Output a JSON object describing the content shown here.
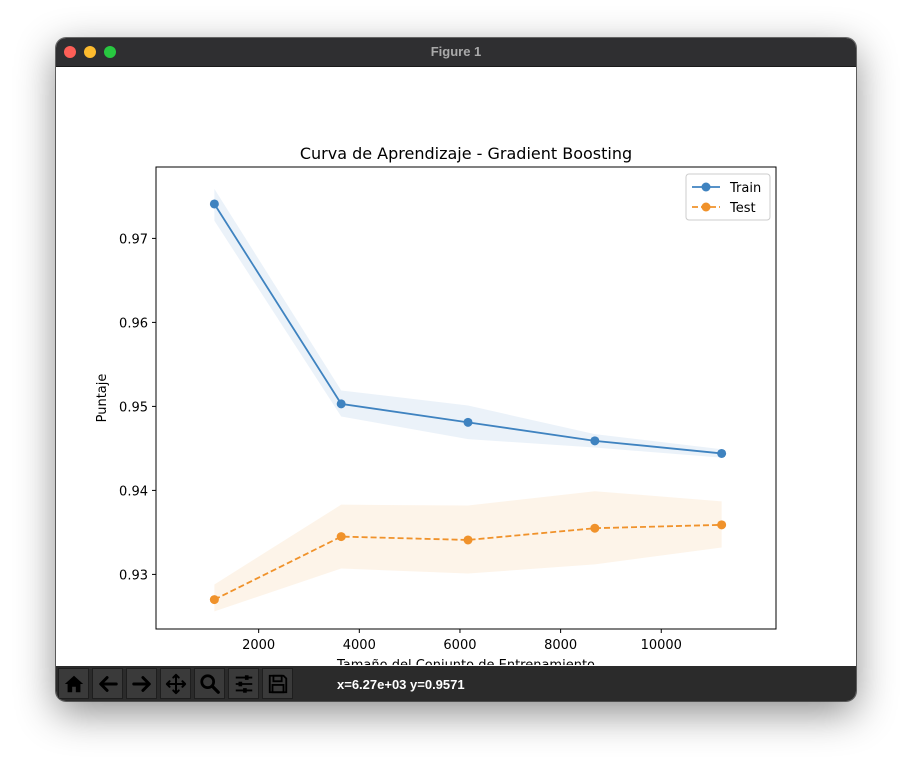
{
  "window": {
    "title": "Figure 1"
  },
  "status": {
    "coords": "x=6.27e+03 y=0.9571"
  },
  "toolbar": {
    "tools": [
      {
        "name": "home-icon"
      },
      {
        "name": "back-arrow-icon"
      },
      {
        "name": "forward-arrow-icon"
      },
      {
        "name": "pan-icon"
      },
      {
        "name": "zoom-icon"
      },
      {
        "name": "configure-subplots-icon"
      },
      {
        "name": "save-icon"
      }
    ]
  },
  "chart_data": {
    "type": "line",
    "title": "Curva de Aprendizaje - Gradient Boosting",
    "xlabel": "Tamaño del Conjunto de Entrenamiento",
    "ylabel": "Puntaje",
    "xlim": [
      -40,
      12280
    ],
    "ylim": [
      0.9235,
      0.9785
    ],
    "xticks": [
      2000,
      4000,
      6000,
      8000,
      10000
    ],
    "xtick_labels": [
      "2000",
      "4000",
      "6000",
      "8000",
      "10000"
    ],
    "yticks": [
      0.93,
      0.94,
      0.95,
      0.96,
      0.97
    ],
    "ytick_labels": [
      "0.93",
      "0.94",
      "0.95",
      "0.96",
      "0.97"
    ],
    "grid": false,
    "legend_position": "top-right",
    "x": [
      1120,
      3640,
      6160,
      8680,
      11200
    ],
    "series": [
      {
        "name": "Train",
        "color": "#3f83c0",
        "linestyle": "solid",
        "values": [
          0.9741,
          0.9503,
          0.9481,
          0.9459,
          0.9444
        ],
        "band_upper": [
          0.9759,
          0.9519,
          0.9501,
          0.9467,
          0.9449
        ],
        "band_lower": [
          0.9721,
          0.9488,
          0.9461,
          0.9451,
          0.9439
        ]
      },
      {
        "name": "Test",
        "color": "#f0922b",
        "linestyle": "dashed",
        "values": [
          0.927,
          0.9345,
          0.9341,
          0.9355,
          0.9359
        ],
        "band_upper": [
          0.9288,
          0.9383,
          0.9382,
          0.9399,
          0.9387
        ],
        "band_lower": [
          0.9256,
          0.9307,
          0.9301,
          0.9312,
          0.9332
        ]
      }
    ]
  }
}
